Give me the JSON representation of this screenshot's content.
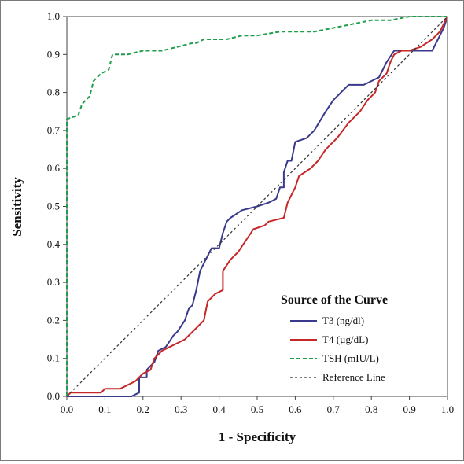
{
  "chart_data": {
    "type": "line",
    "title": "",
    "xlabel": "1 - Specificity",
    "ylabel": "Sensitivity",
    "xlim": [
      0,
      1
    ],
    "ylim": [
      0,
      1
    ],
    "xticks": [
      "0.0",
      "0.1",
      "0.2",
      "0.3",
      "0.4",
      "0.5",
      "0.6",
      "0.7",
      "0.8",
      "0.9",
      "1.0"
    ],
    "yticks": [
      "0.0",
      "0.1",
      "0.2",
      "0.3",
      "0.4",
      "0.5",
      "0.6",
      "0.7",
      "0.8",
      "0.9",
      "1.0"
    ],
    "grid": false,
    "legend": {
      "title": "Source of the Curve",
      "position": "bottom-right"
    },
    "series": [
      {
        "name": "T3 (ng/dl)",
        "color": "#3a3a8c",
        "style": "solid",
        "points": [
          [
            0,
            0
          ],
          [
            0.17,
            0
          ],
          [
            0.19,
            0.01
          ],
          [
            0.19,
            0.05
          ],
          [
            0.21,
            0.05
          ],
          [
            0.21,
            0.07
          ],
          [
            0.23,
            0.09
          ],
          [
            0.24,
            0.12
          ],
          [
            0.26,
            0.13
          ],
          [
            0.28,
            0.16
          ],
          [
            0.29,
            0.17
          ],
          [
            0.31,
            0.2
          ],
          [
            0.32,
            0.23
          ],
          [
            0.33,
            0.24
          ],
          [
            0.34,
            0.28
          ],
          [
            0.35,
            0.33
          ],
          [
            0.37,
            0.37
          ],
          [
            0.38,
            0.39
          ],
          [
            0.4,
            0.39
          ],
          [
            0.41,
            0.43
          ],
          [
            0.42,
            0.46
          ],
          [
            0.43,
            0.47
          ],
          [
            0.46,
            0.49
          ],
          [
            0.5,
            0.5
          ],
          [
            0.53,
            0.51
          ],
          [
            0.55,
            0.52
          ],
          [
            0.56,
            0.55
          ],
          [
            0.57,
            0.55
          ],
          [
            0.57,
            0.59
          ],
          [
            0.58,
            0.62
          ],
          [
            0.59,
            0.62
          ],
          [
            0.6,
            0.67
          ],
          [
            0.63,
            0.68
          ],
          [
            0.65,
            0.7
          ],
          [
            0.68,
            0.75
          ],
          [
            0.7,
            0.78
          ],
          [
            0.74,
            0.82
          ],
          [
            0.78,
            0.82
          ],
          [
            0.8,
            0.83
          ],
          [
            0.82,
            0.84
          ],
          [
            0.84,
            0.88
          ],
          [
            0.86,
            0.91
          ],
          [
            0.88,
            0.91
          ],
          [
            0.9,
            0.91
          ],
          [
            0.92,
            0.91
          ],
          [
            0.95,
            0.91
          ],
          [
            0.96,
            0.91
          ],
          [
            0.98,
            0.95
          ],
          [
            0.99,
            0.97
          ],
          [
            1,
            1
          ]
        ]
      },
      {
        "name": "T4 (µg/dL)",
        "color": "#c62828",
        "style": "solid",
        "points": [
          [
            0,
            0
          ],
          [
            0.01,
            0.01
          ],
          [
            0.09,
            0.01
          ],
          [
            0.1,
            0.02
          ],
          [
            0.14,
            0.02
          ],
          [
            0.16,
            0.03
          ],
          [
            0.18,
            0.04
          ],
          [
            0.2,
            0.06
          ],
          [
            0.22,
            0.07
          ],
          [
            0.23,
            0.1
          ],
          [
            0.25,
            0.12
          ],
          [
            0.27,
            0.13
          ],
          [
            0.29,
            0.14
          ],
          [
            0.31,
            0.15
          ],
          [
            0.33,
            0.17
          ],
          [
            0.34,
            0.18
          ],
          [
            0.36,
            0.2
          ],
          [
            0.37,
            0.25
          ],
          [
            0.39,
            0.27
          ],
          [
            0.41,
            0.28
          ],
          [
            0.41,
            0.33
          ],
          [
            0.43,
            0.36
          ],
          [
            0.45,
            0.38
          ],
          [
            0.47,
            0.41
          ],
          [
            0.49,
            0.44
          ],
          [
            0.52,
            0.45
          ],
          [
            0.53,
            0.46
          ],
          [
            0.57,
            0.47
          ],
          [
            0.58,
            0.51
          ],
          [
            0.6,
            0.55
          ],
          [
            0.61,
            0.58
          ],
          [
            0.64,
            0.6
          ],
          [
            0.66,
            0.62
          ],
          [
            0.68,
            0.65
          ],
          [
            0.71,
            0.68
          ],
          [
            0.74,
            0.72
          ],
          [
            0.77,
            0.75
          ],
          [
            0.79,
            0.78
          ],
          [
            0.81,
            0.8
          ],
          [
            0.82,
            0.83
          ],
          [
            0.84,
            0.85
          ],
          [
            0.85,
            0.88
          ],
          [
            0.86,
            0.9
          ],
          [
            0.88,
            0.91
          ],
          [
            0.9,
            0.91
          ],
          [
            0.93,
            0.92
          ],
          [
            0.96,
            0.94
          ],
          [
            0.98,
            0.96
          ],
          [
            1,
            1
          ]
        ]
      },
      {
        "name": "TSH (mIU/L)",
        "color": "#1e9e4a",
        "style": "dashed",
        "points": [
          [
            0,
            0
          ],
          [
            0,
            0.73
          ],
          [
            0.03,
            0.74
          ],
          [
            0.04,
            0.77
          ],
          [
            0.06,
            0.79
          ],
          [
            0.07,
            0.83
          ],
          [
            0.08,
            0.84
          ],
          [
            0.09,
            0.85
          ],
          [
            0.11,
            0.86
          ],
          [
            0.12,
            0.9
          ],
          [
            0.16,
            0.9
          ],
          [
            0.2,
            0.91
          ],
          [
            0.25,
            0.91
          ],
          [
            0.29,
            0.92
          ],
          [
            0.33,
            0.93
          ],
          [
            0.34,
            0.93
          ],
          [
            0.36,
            0.94
          ],
          [
            0.42,
            0.94
          ],
          [
            0.46,
            0.95
          ],
          [
            0.5,
            0.95
          ],
          [
            0.56,
            0.96
          ],
          [
            0.65,
            0.96
          ],
          [
            0.7,
            0.97
          ],
          [
            0.75,
            0.98
          ],
          [
            0.8,
            0.99
          ],
          [
            0.85,
            0.99
          ],
          [
            0.9,
            1
          ],
          [
            1,
            1
          ]
        ]
      },
      {
        "name": "Reference Line",
        "color": "#333333",
        "style": "dotted",
        "points": [
          [
            0,
            0
          ],
          [
            1,
            1
          ]
        ]
      }
    ]
  }
}
